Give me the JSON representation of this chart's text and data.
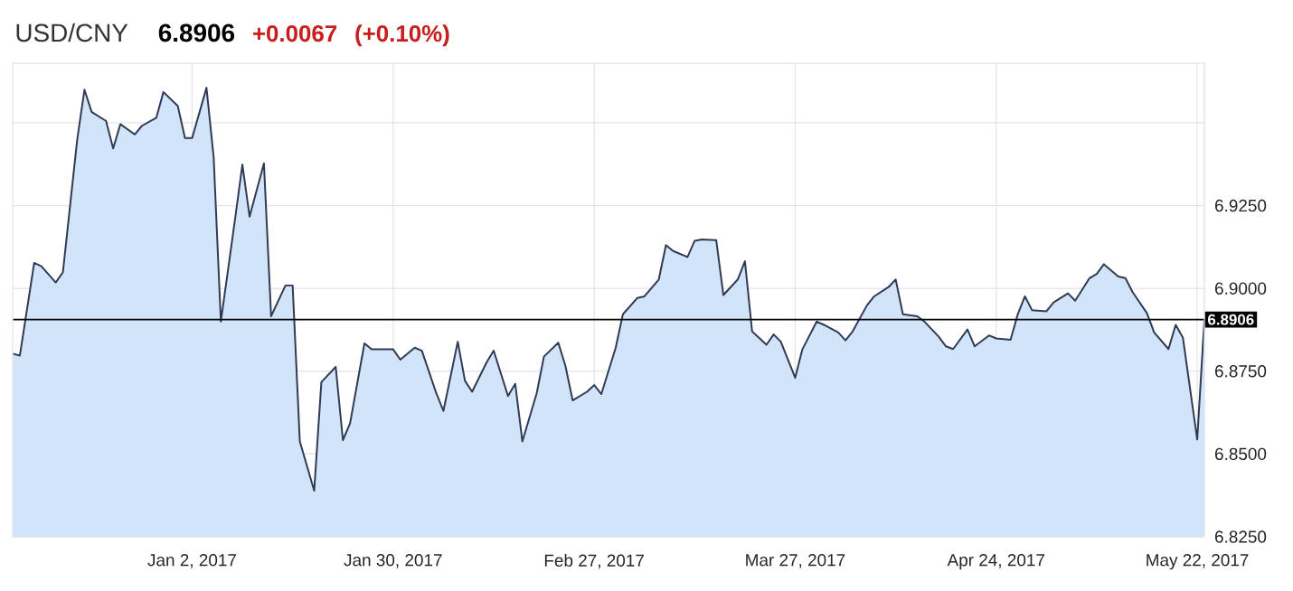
{
  "chart_data": {
    "type": "area",
    "title": "USD/CNY",
    "subtitle": "6.8906",
    "annotations": [
      "+0.0067",
      "(+0.10%)"
    ],
    "x": [
      "2016-12-08",
      "2016-12-09",
      "2016-12-11",
      "2016-12-12",
      "2016-12-14",
      "2016-12-15",
      "2016-12-17",
      "2016-12-18",
      "2016-12-19",
      "2016-12-21",
      "2016-12-22",
      "2016-12-23",
      "2016-12-25",
      "2016-12-26",
      "2016-12-28",
      "2016-12-29",
      "2016-12-31",
      "2017-01-01",
      "2017-01-02",
      "2017-01-04",
      "2017-01-05",
      "2017-01-06",
      "2017-01-08",
      "2017-01-09",
      "2017-01-10",
      "2017-01-12",
      "2017-01-13",
      "2017-01-15",
      "2017-01-16",
      "2017-01-17",
      "2017-01-19",
      "2017-01-20",
      "2017-01-22",
      "2017-01-23",
      "2017-01-24",
      "2017-01-26",
      "2017-01-27",
      "2017-01-30",
      "2017-01-31",
      "2017-02-02",
      "2017-02-03",
      "2017-02-05",
      "2017-02-06",
      "2017-02-08",
      "2017-02-09",
      "2017-02-10",
      "2017-02-12",
      "2017-02-13",
      "2017-02-15",
      "2017-02-16",
      "2017-02-17",
      "2017-02-19",
      "2017-02-20",
      "2017-02-22",
      "2017-02-23",
      "2017-02-24",
      "2017-02-26",
      "2017-02-27",
      "2017-02-28",
      "2017-03-02",
      "2017-03-03",
      "2017-03-05",
      "2017-03-06",
      "2017-03-08",
      "2017-03-09",
      "2017-03-10",
      "2017-03-12",
      "2017-03-13",
      "2017-03-14",
      "2017-03-16",
      "2017-03-17",
      "2017-03-19",
      "2017-03-20",
      "2017-03-21",
      "2017-03-23",
      "2017-03-24",
      "2017-03-25",
      "2017-03-27",
      "2017-03-28",
      "2017-03-30",
      "2017-03-31",
      "2017-04-02",
      "2017-04-03",
      "2017-04-04",
      "2017-04-06",
      "2017-04-07",
      "2017-04-09",
      "2017-04-10",
      "2017-04-11",
      "2017-04-13",
      "2017-04-14",
      "2017-04-16",
      "2017-04-17",
      "2017-04-18",
      "2017-04-20",
      "2017-04-21",
      "2017-04-23",
      "2017-04-24",
      "2017-04-26",
      "2017-04-27",
      "2017-04-28",
      "2017-04-29",
      "2017-05-01",
      "2017-05-02",
      "2017-05-04",
      "2017-05-05",
      "2017-05-07",
      "2017-05-08",
      "2017-05-09",
      "2017-05-11",
      "2017-05-12",
      "2017-05-13",
      "2017-05-15",
      "2017-05-16",
      "2017-05-18",
      "2017-05-19",
      "2017-05-20",
      "2017-05-22",
      "2017-05-23"
    ],
    "series": [
      {
        "color": "#d2e4fa",
        "values": [
          6.8803,
          6.8797,
          6.9077,
          6.9067,
          6.9018,
          6.9049,
          6.9451,
          6.96,
          6.9533,
          6.9506,
          6.9423,
          6.9496,
          6.9465,
          6.9491,
          6.9515,
          6.9593,
          6.9551,
          6.9454,
          6.9454,
          6.9606,
          6.9396,
          6.89,
          6.9213,
          6.9374,
          6.9217,
          6.9378,
          6.8916,
          6.9009,
          6.9009,
          6.8538,
          6.8389,
          6.8717,
          6.8763,
          6.8542,
          6.8593,
          6.8834,
          6.8816,
          6.8816,
          6.8785,
          6.8821,
          6.8812,
          6.8684,
          6.863,
          6.8839,
          6.8721,
          6.8688,
          6.8776,
          6.8812,
          6.8675,
          6.8712,
          6.8538,
          6.8684,
          6.8794,
          6.8836,
          6.8766,
          6.8662,
          6.8688,
          6.8708,
          6.8681,
          6.8821,
          6.8922,
          6.8971,
          6.8976,
          6.9027,
          6.9131,
          6.9113,
          6.9095,
          6.9144,
          6.9148,
          6.9146,
          6.898,
          6.9027,
          6.9082,
          6.887,
          6.883,
          6.8861,
          6.8839,
          6.873,
          6.8816,
          6.89,
          6.889,
          6.8867,
          6.8843,
          6.887,
          6.8949,
          6.8976,
          6.9004,
          6.9027,
          6.8922,
          6.8916,
          6.89,
          6.8854,
          6.8825,
          6.8817,
          6.8876,
          6.8825,
          6.8858,
          6.8849,
          6.8845,
          6.8922,
          6.8976,
          6.8934,
          6.8931,
          6.8958,
          6.8985,
          6.8963,
          6.9031,
          6.9044,
          6.9073,
          6.9036,
          6.9031,
          6.8989,
          6.8925,
          6.8867,
          6.8817,
          6.889,
          6.8852,
          6.8544,
          6.8906
        ]
      }
    ],
    "xlim": [
      "2016-12-08",
      "2017-05-23"
    ],
    "xticks": [
      {
        "value": "2017-01-02",
        "label": "Jan 2, 2017"
      },
      {
        "value": "2017-01-30",
        "label": "Jan 30, 2017"
      },
      {
        "value": "2017-02-27",
        "label": "Feb 27, 2017"
      },
      {
        "value": "2017-03-27",
        "label": "Mar 27, 2017"
      },
      {
        "value": "2017-04-24",
        "label": "Apr 24, 2017"
      },
      {
        "value": "2017-05-22",
        "label": "May 22, 2017"
      }
    ],
    "ylim": [
      6.825,
      6.968
    ],
    "yticks": [
      {
        "value": 6.825,
        "label": "6.8250"
      },
      {
        "value": 6.85,
        "label": "6.8500"
      },
      {
        "value": 6.875,
        "label": "6.8750"
      },
      {
        "value": 6.9,
        "label": "6.9000"
      },
      {
        "value": 6.925,
        "label": "6.9250"
      },
      {
        "value": 6.95,
        "label": null
      }
    ],
    "ref_lines": [
      {
        "axis": "y",
        "value": 6.8906,
        "label": "6.8906",
        "color": "#000000"
      }
    ],
    "grid": true
  }
}
